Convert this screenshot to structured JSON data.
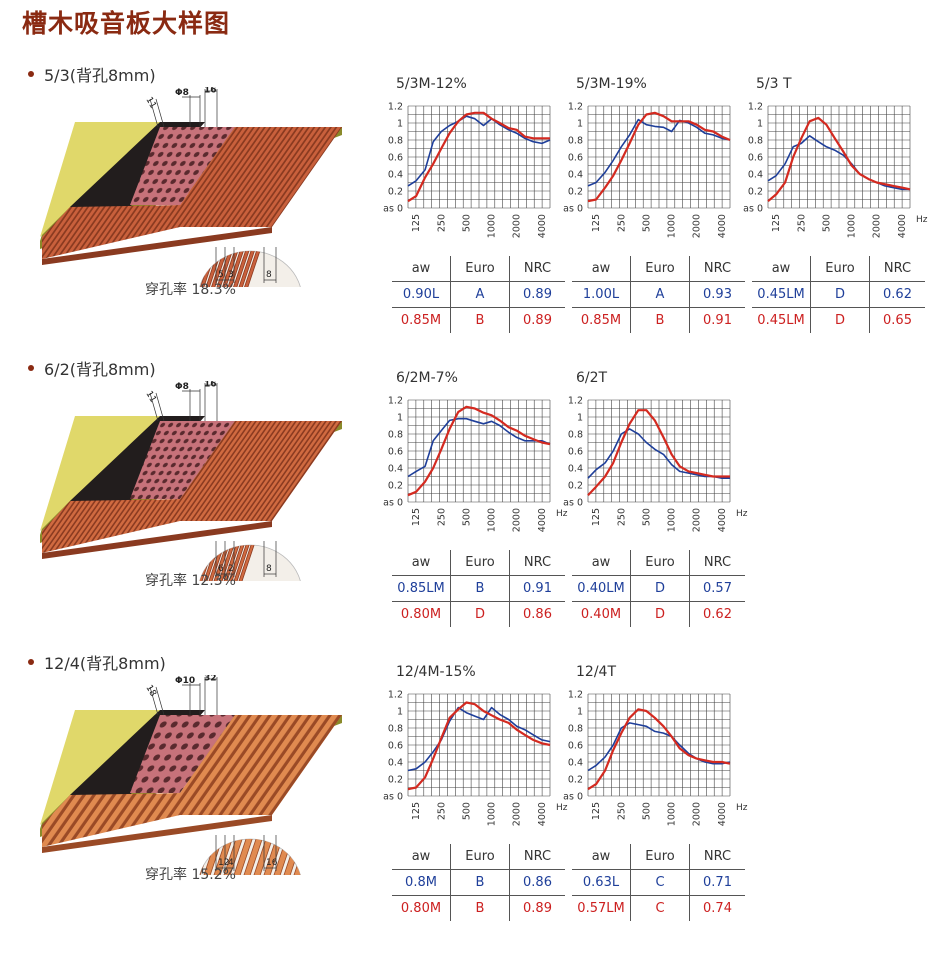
{
  "page_title": "槽木吸音板大样图",
  "colors": {
    "blue": "#1f3f9a",
    "red": "#d42a20",
    "brand": "#8a2a12"
  },
  "sections": [
    {
      "heading": "5/3(背孔8mm)",
      "perforation": "穿孔率 18.3%",
      "dims": {
        "d1": "11",
        "d2": "Φ8",
        "d3": "16",
        "b1": "5",
        "b2": "3",
        "b3": "8"
      },
      "charts": [
        {
          "title": "5/3M-12%"
        },
        {
          "title": "5/3M-19%"
        },
        {
          "title": "5/3 T"
        }
      ]
    },
    {
      "heading": "6/2(背孔8mm)",
      "perforation": "穿孔率 12.3%",
      "dims": {
        "d1": "11",
        "d2": "Φ8",
        "d3": "16",
        "b1": "6",
        "b2": "2",
        "b3": "8"
      },
      "charts": [
        {
          "title": "6/2M-7%"
        },
        {
          "title": "6/2T"
        }
      ]
    },
    {
      "heading": "12/4(背孔8mm)",
      "perforation": "穿孔率 15.2%",
      "dims": {
        "d1": "18",
        "d2": "Φ10",
        "d3": "32",
        "b1": "12",
        "b2": "4",
        "b3": "16"
      },
      "charts": [
        {
          "title": "12/4M-15%"
        },
        {
          "title": "12/4T"
        }
      ]
    }
  ],
  "chart_data": [
    {
      "type": "line",
      "title": "5/3M-12%",
      "x": [
        "125",
        "250",
        "500",
        "1000",
        "2000",
        "4000"
      ],
      "y_tick_labels": [
        "as 0",
        "0.2",
        "0.4",
        "0.6",
        "0.8",
        "1",
        "1.2"
      ],
      "ylim": [
        0,
        1.2
      ],
      "grid": true,
      "series": [
        {
          "color": "blue",
          "x": [
            100,
            125,
            160,
            200,
            250,
            315,
            400,
            500,
            630,
            800,
            1000,
            1250,
            1600,
            2000,
            2500,
            3150,
            4000,
            5000
          ],
          "values": [
            0.26,
            0.32,
            0.45,
            0.78,
            0.9,
            0.97,
            1.02,
            1.08,
            1.05,
            0.97,
            1.05,
            0.98,
            0.92,
            0.88,
            0.82,
            0.78,
            0.76,
            0.8
          ]
        },
        {
          "color": "red",
          "x": [
            100,
            125,
            160,
            200,
            250,
            315,
            400,
            500,
            630,
            800,
            1000,
            1250,
            1600,
            2000,
            2500,
            3150,
            4000,
            5000
          ],
          "values": [
            0.08,
            0.14,
            0.36,
            0.52,
            0.7,
            0.88,
            1.02,
            1.1,
            1.12,
            1.12,
            1.05,
            1.0,
            0.94,
            0.92,
            0.84,
            0.82,
            0.82,
            0.82
          ]
        }
      ],
      "table": {
        "headers": [
          "aw",
          "Euro",
          "NRC"
        ],
        "rows": [
          [
            "0.90L",
            "A",
            "0.89"
          ],
          [
            "0.85M",
            "B",
            "0.89"
          ]
        ]
      }
    },
    {
      "type": "line",
      "title": "5/3M-19%",
      "x": [
        "125",
        "250",
        "500",
        "1000",
        "2000",
        "4000"
      ],
      "y_tick_labels": [
        "as 0",
        "0.2",
        "0.4",
        "0.6",
        "0.8",
        "1",
        "1.2"
      ],
      "ylim": [
        0,
        1.2
      ],
      "grid": true,
      "series": [
        {
          "color": "blue",
          "x": [
            100,
            125,
            160,
            200,
            250,
            315,
            400,
            500,
            630,
            800,
            1000,
            1250,
            1600,
            2000,
            2500,
            3150,
            4000,
            5000
          ],
          "values": [
            0.26,
            0.3,
            0.42,
            0.56,
            0.72,
            0.86,
            1.04,
            0.98,
            0.96,
            0.95,
            0.9,
            1.03,
            1.0,
            0.95,
            0.88,
            0.86,
            0.82,
            0.8
          ]
        },
        {
          "color": "red",
          "x": [
            100,
            125,
            160,
            200,
            250,
            315,
            400,
            500,
            630,
            800,
            1000,
            1250,
            1600,
            2000,
            2500,
            3150,
            4000,
            5000
          ],
          "values": [
            0.08,
            0.1,
            0.24,
            0.38,
            0.56,
            0.76,
            0.98,
            1.1,
            1.12,
            1.08,
            1.02,
            1.02,
            1.02,
            0.98,
            0.92,
            0.9,
            0.84,
            0.8
          ]
        }
      ],
      "table": {
        "headers": [
          "aw",
          "Euro",
          "NRC"
        ],
        "rows": [
          [
            "1.00L",
            "A",
            "0.93"
          ],
          [
            "0.85M",
            "B",
            "0.91"
          ]
        ]
      }
    },
    {
      "type": "line",
      "title": "5/3 T",
      "x": [
        "125",
        "250",
        "500",
        "1000",
        "2000",
        "4000"
      ],
      "y_tick_labels": [
        "as 0",
        "0.2",
        "0.4",
        "0.6",
        "0.8",
        "1",
        "1.2"
      ],
      "ylim": [
        0,
        1.2
      ],
      "grid": true,
      "xlabel": "Hz",
      "series": [
        {
          "color": "blue",
          "x": [
            100,
            125,
            160,
            200,
            250,
            315,
            400,
            500,
            630,
            800,
            1000,
            1250,
            1600,
            2000,
            2500,
            3150,
            4000,
            5000
          ],
          "values": [
            0.32,
            0.38,
            0.52,
            0.72,
            0.76,
            0.85,
            0.78,
            0.72,
            0.68,
            0.62,
            0.52,
            0.4,
            0.34,
            0.3,
            0.26,
            0.24,
            0.22,
            0.22
          ]
        },
        {
          "color": "red",
          "x": [
            100,
            125,
            160,
            200,
            250,
            315,
            400,
            500,
            630,
            800,
            1000,
            1250,
            1600,
            2000,
            2500,
            3150,
            4000,
            5000
          ],
          "values": [
            0.08,
            0.16,
            0.3,
            0.6,
            0.82,
            1.02,
            1.06,
            0.98,
            0.82,
            0.66,
            0.5,
            0.4,
            0.34,
            0.3,
            0.28,
            0.26,
            0.24,
            0.22
          ]
        }
      ],
      "table": {
        "headers": [
          "aw",
          "Euro",
          "NRC"
        ],
        "rows": [
          [
            "0.45LM",
            "D",
            "0.62"
          ],
          [
            "0.45LM",
            "D",
            "0.65"
          ]
        ]
      }
    },
    {
      "type": "line",
      "title": "6/2M-7%",
      "x": [
        "125",
        "250",
        "500",
        "1000",
        "2000",
        "4000"
      ],
      "y_tick_labels": [
        "as 0",
        "0.2",
        "0.4",
        "0.6",
        "0.8",
        "1",
        "1.2"
      ],
      "ylim": [
        0,
        1.2
      ],
      "grid": true,
      "xlabel": "Hz",
      "series": [
        {
          "color": "blue",
          "x": [
            100,
            125,
            160,
            200,
            250,
            315,
            400,
            500,
            630,
            800,
            1000,
            1250,
            1600,
            2000,
            2500,
            3150,
            4000,
            5000
          ],
          "values": [
            0.3,
            0.36,
            0.42,
            0.72,
            0.84,
            0.96,
            0.98,
            0.98,
            0.95,
            0.92,
            0.95,
            0.9,
            0.82,
            0.76,
            0.72,
            0.72,
            0.72,
            0.68
          ]
        },
        {
          "color": "red",
          "x": [
            100,
            125,
            160,
            200,
            250,
            315,
            400,
            500,
            630,
            800,
            1000,
            1250,
            1600,
            2000,
            2500,
            3150,
            4000,
            5000
          ],
          "values": [
            0.08,
            0.12,
            0.24,
            0.4,
            0.62,
            0.86,
            1.06,
            1.12,
            1.1,
            1.05,
            1.02,
            0.96,
            0.88,
            0.84,
            0.78,
            0.74,
            0.7,
            0.68
          ]
        }
      ],
      "table": {
        "headers": [
          "aw",
          "Euro",
          "NRC"
        ],
        "rows": [
          [
            "0.85LM",
            "B",
            "0.91"
          ],
          [
            "0.80M",
            "D",
            "0.86"
          ]
        ]
      }
    },
    {
      "type": "line",
      "title": "6/2T",
      "x": [
        "125",
        "250",
        "500",
        "1000",
        "2000",
        "4000"
      ],
      "y_tick_labels": [
        "as 0",
        "0.2",
        "0.4",
        "0.6",
        "0.8",
        "1",
        "1.2"
      ],
      "ylim": [
        0,
        1.2
      ],
      "grid": true,
      "xlabel": "Hz",
      "series": [
        {
          "color": "blue",
          "x": [
            100,
            125,
            160,
            200,
            250,
            315,
            400,
            500,
            630,
            800,
            1000,
            1250,
            1600,
            2000,
            2500,
            3150,
            4000,
            5000
          ],
          "values": [
            0.28,
            0.38,
            0.46,
            0.6,
            0.8,
            0.86,
            0.8,
            0.7,
            0.62,
            0.56,
            0.44,
            0.36,
            0.34,
            0.32,
            0.3,
            0.3,
            0.28,
            0.28
          ]
        },
        {
          "color": "red",
          "x": [
            100,
            125,
            160,
            200,
            250,
            315,
            400,
            500,
            630,
            800,
            1000,
            1250,
            1600,
            2000,
            2500,
            3150,
            4000,
            5000
          ],
          "values": [
            0.08,
            0.18,
            0.3,
            0.46,
            0.7,
            0.92,
            1.08,
            1.08,
            0.96,
            0.76,
            0.56,
            0.42,
            0.36,
            0.34,
            0.32,
            0.3,
            0.3,
            0.3
          ]
        }
      ],
      "table": {
        "headers": [
          "aw",
          "Euro",
          "NRC"
        ],
        "rows": [
          [
            "0.40LM",
            "D",
            "0.57"
          ],
          [
            "0.40M",
            "D",
            "0.62"
          ]
        ]
      }
    },
    {
      "type": "line",
      "title": "12/4M-15%",
      "x": [
        "125",
        "250",
        "500",
        "1000",
        "2000",
        "4000"
      ],
      "y_tick_labels": [
        "as 0",
        "0.2",
        "0.4",
        "0.6",
        "0.8",
        "1",
        "1.2"
      ],
      "ylim": [
        0,
        1.2
      ],
      "grid": true,
      "xlabel": "Hz",
      "series": [
        {
          "color": "blue",
          "x": [
            100,
            125,
            160,
            200,
            250,
            315,
            400,
            500,
            630,
            800,
            1000,
            1250,
            1600,
            2000,
            2500,
            3150,
            4000,
            5000
          ],
          "values": [
            0.3,
            0.32,
            0.4,
            0.52,
            0.66,
            0.88,
            1.04,
            0.98,
            0.94,
            0.9,
            1.04,
            0.96,
            0.9,
            0.82,
            0.78,
            0.72,
            0.66,
            0.64
          ]
        },
        {
          "color": "red",
          "x": [
            100,
            125,
            160,
            200,
            250,
            315,
            400,
            500,
            630,
            800,
            1000,
            1250,
            1600,
            2000,
            2500,
            3150,
            4000,
            5000
          ],
          "values": [
            0.08,
            0.1,
            0.22,
            0.44,
            0.68,
            0.92,
            1.02,
            1.1,
            1.08,
            1.0,
            0.95,
            0.9,
            0.86,
            0.78,
            0.72,
            0.66,
            0.62,
            0.6
          ]
        }
      ],
      "table": {
        "headers": [
          "aw",
          "Euro",
          "NRC"
        ],
        "rows": [
          [
            "0.8M",
            "B",
            "0.86"
          ],
          [
            "0.80M",
            "B",
            "0.89"
          ]
        ]
      }
    },
    {
      "type": "line",
      "title": "12/4T",
      "x": [
        "125",
        "250",
        "500",
        "1000",
        "2000",
        "4000"
      ],
      "y_tick_labels": [
        "as 0",
        "0.2",
        "0.4",
        "0.6",
        "0.8",
        "1",
        "1.2"
      ],
      "ylim": [
        0,
        1.2
      ],
      "grid": true,
      "xlabel": "Hz",
      "series": [
        {
          "color": "blue",
          "x": [
            100,
            125,
            160,
            200,
            250,
            315,
            400,
            500,
            630,
            800,
            1000,
            1250,
            1600,
            2000,
            2500,
            3150,
            4000,
            5000
          ],
          "values": [
            0.3,
            0.36,
            0.46,
            0.6,
            0.8,
            0.86,
            0.84,
            0.82,
            0.76,
            0.74,
            0.7,
            0.6,
            0.5,
            0.44,
            0.4,
            0.38,
            0.38,
            0.4
          ]
        },
        {
          "color": "red",
          "x": [
            100,
            125,
            160,
            200,
            250,
            315,
            400,
            500,
            630,
            800,
            1000,
            1250,
            1600,
            2000,
            2500,
            3150,
            4000,
            5000
          ],
          "values": [
            0.08,
            0.14,
            0.3,
            0.54,
            0.74,
            0.92,
            1.02,
            1.0,
            0.92,
            0.82,
            0.7,
            0.56,
            0.48,
            0.44,
            0.42,
            0.4,
            0.4,
            0.38
          ]
        }
      ],
      "table": {
        "headers": [
          "aw",
          "Euro",
          "NRC"
        ],
        "rows": [
          [
            "0.63L",
            "C",
            "0.71"
          ],
          [
            "0.57LM",
            "C",
            "0.74"
          ]
        ]
      }
    }
  ]
}
